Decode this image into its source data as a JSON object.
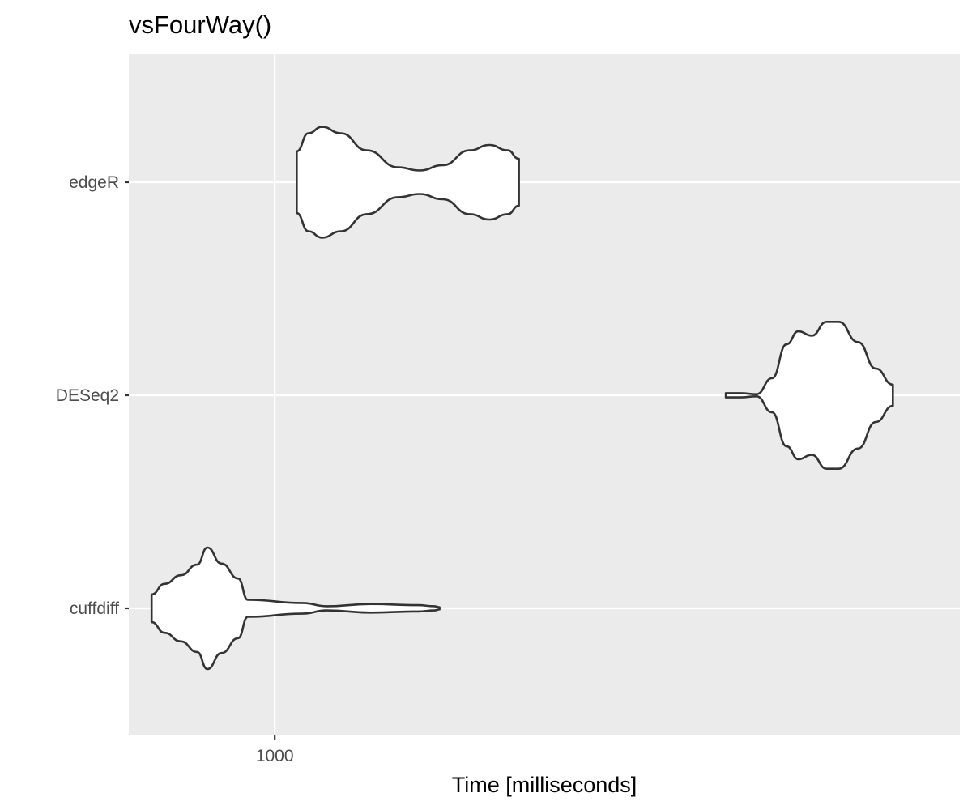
{
  "chart_data": {
    "type": "violin",
    "title": "vsFourWay()",
    "xlabel": "Time [milliseconds]",
    "ylabel": "",
    "x_scale": "log10",
    "xlim": [
      600,
      11000
    ],
    "x_ticks": [
      1000
    ],
    "x_tick_labels": [
      "1000"
    ],
    "grid": true,
    "background": "#ebebeb",
    "violin_fill": "#ffffff",
    "violin_stroke": "#333333",
    "categories": [
      "edgeR",
      "DESeq2",
      "cuffdiff"
    ],
    "violins": [
      {
        "category": "edgeR",
        "profile": [
          [
            1080,
            0.0
          ],
          [
            1080,
            0.29
          ],
          [
            1125,
            0.46
          ],
          [
            1180,
            0.52
          ],
          [
            1260,
            0.46
          ],
          [
            1380,
            0.3
          ],
          [
            1540,
            0.14
          ],
          [
            1660,
            0.11
          ],
          [
            1800,
            0.16
          ],
          [
            1980,
            0.3
          ],
          [
            2120,
            0.35
          ],
          [
            2260,
            0.3
          ],
          [
            2350,
            0.22
          ],
          [
            2350,
            0.0
          ]
        ]
      },
      {
        "category": "DESeq2",
        "profile": [
          [
            4850,
            0.0
          ],
          [
            4850,
            0.02
          ],
          [
            5100,
            0.02
          ],
          [
            5400,
            0.01
          ],
          [
            5700,
            0.16
          ],
          [
            6000,
            0.48
          ],
          [
            6250,
            0.6
          ],
          [
            6550,
            0.56
          ],
          [
            6900,
            0.69
          ],
          [
            7200,
            0.69
          ],
          [
            7700,
            0.5
          ],
          [
            8200,
            0.25
          ],
          [
            8700,
            0.1
          ],
          [
            8700,
            0.0
          ]
        ]
      },
      {
        "category": "cuffdiff",
        "profile": [
          [
            650,
            0.0
          ],
          [
            650,
            0.13
          ],
          [
            680,
            0.23
          ],
          [
            720,
            0.31
          ],
          [
            762,
            0.41
          ],
          [
            790,
            0.57
          ],
          [
            830,
            0.42
          ],
          [
            880,
            0.28
          ],
          [
            910,
            0.08
          ],
          [
            1100,
            0.05
          ],
          [
            1200,
            0.02
          ],
          [
            1400,
            0.04
          ],
          [
            1650,
            0.03
          ],
          [
            1750,
            0.02
          ],
          [
            1780,
            0.01
          ],
          [
            1780,
            0.0
          ]
        ]
      }
    ]
  }
}
